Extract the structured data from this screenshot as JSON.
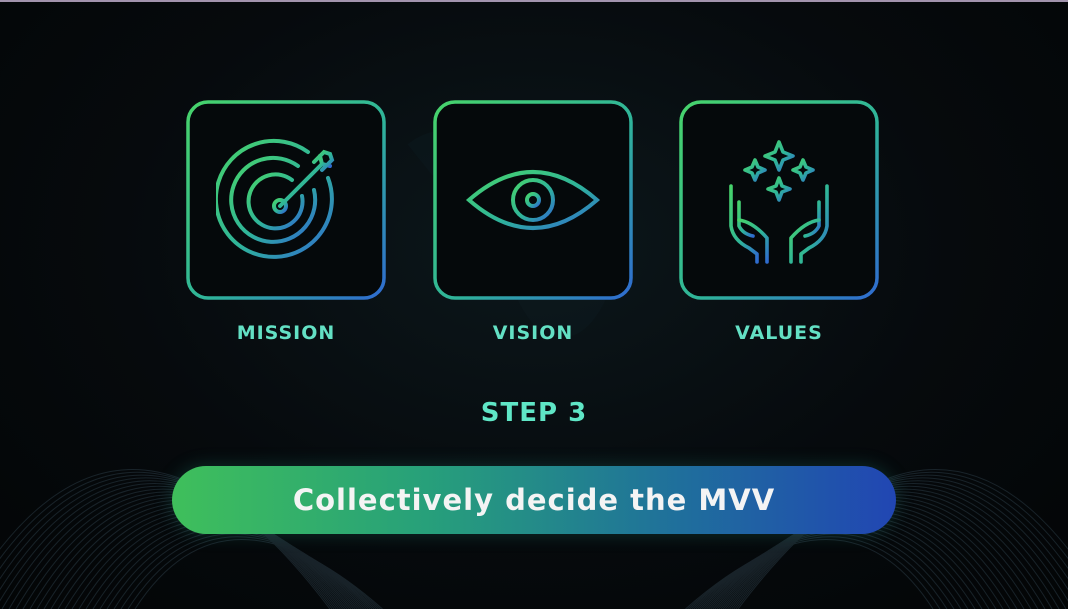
{
  "cards": [
    {
      "label": "MISSION",
      "icon": "target-arrow-icon"
    },
    {
      "label": "VISION",
      "icon": "eye-icon"
    },
    {
      "label": "VALUES",
      "icon": "hands-sparkles-icon"
    }
  ],
  "step": "STEP 3",
  "banner": "Collectively decide the MVV",
  "colors": {
    "gradient_start": "#3fbf5b",
    "gradient_end": "#2146b3",
    "label": "#63e0c4",
    "background": "#05080b"
  }
}
